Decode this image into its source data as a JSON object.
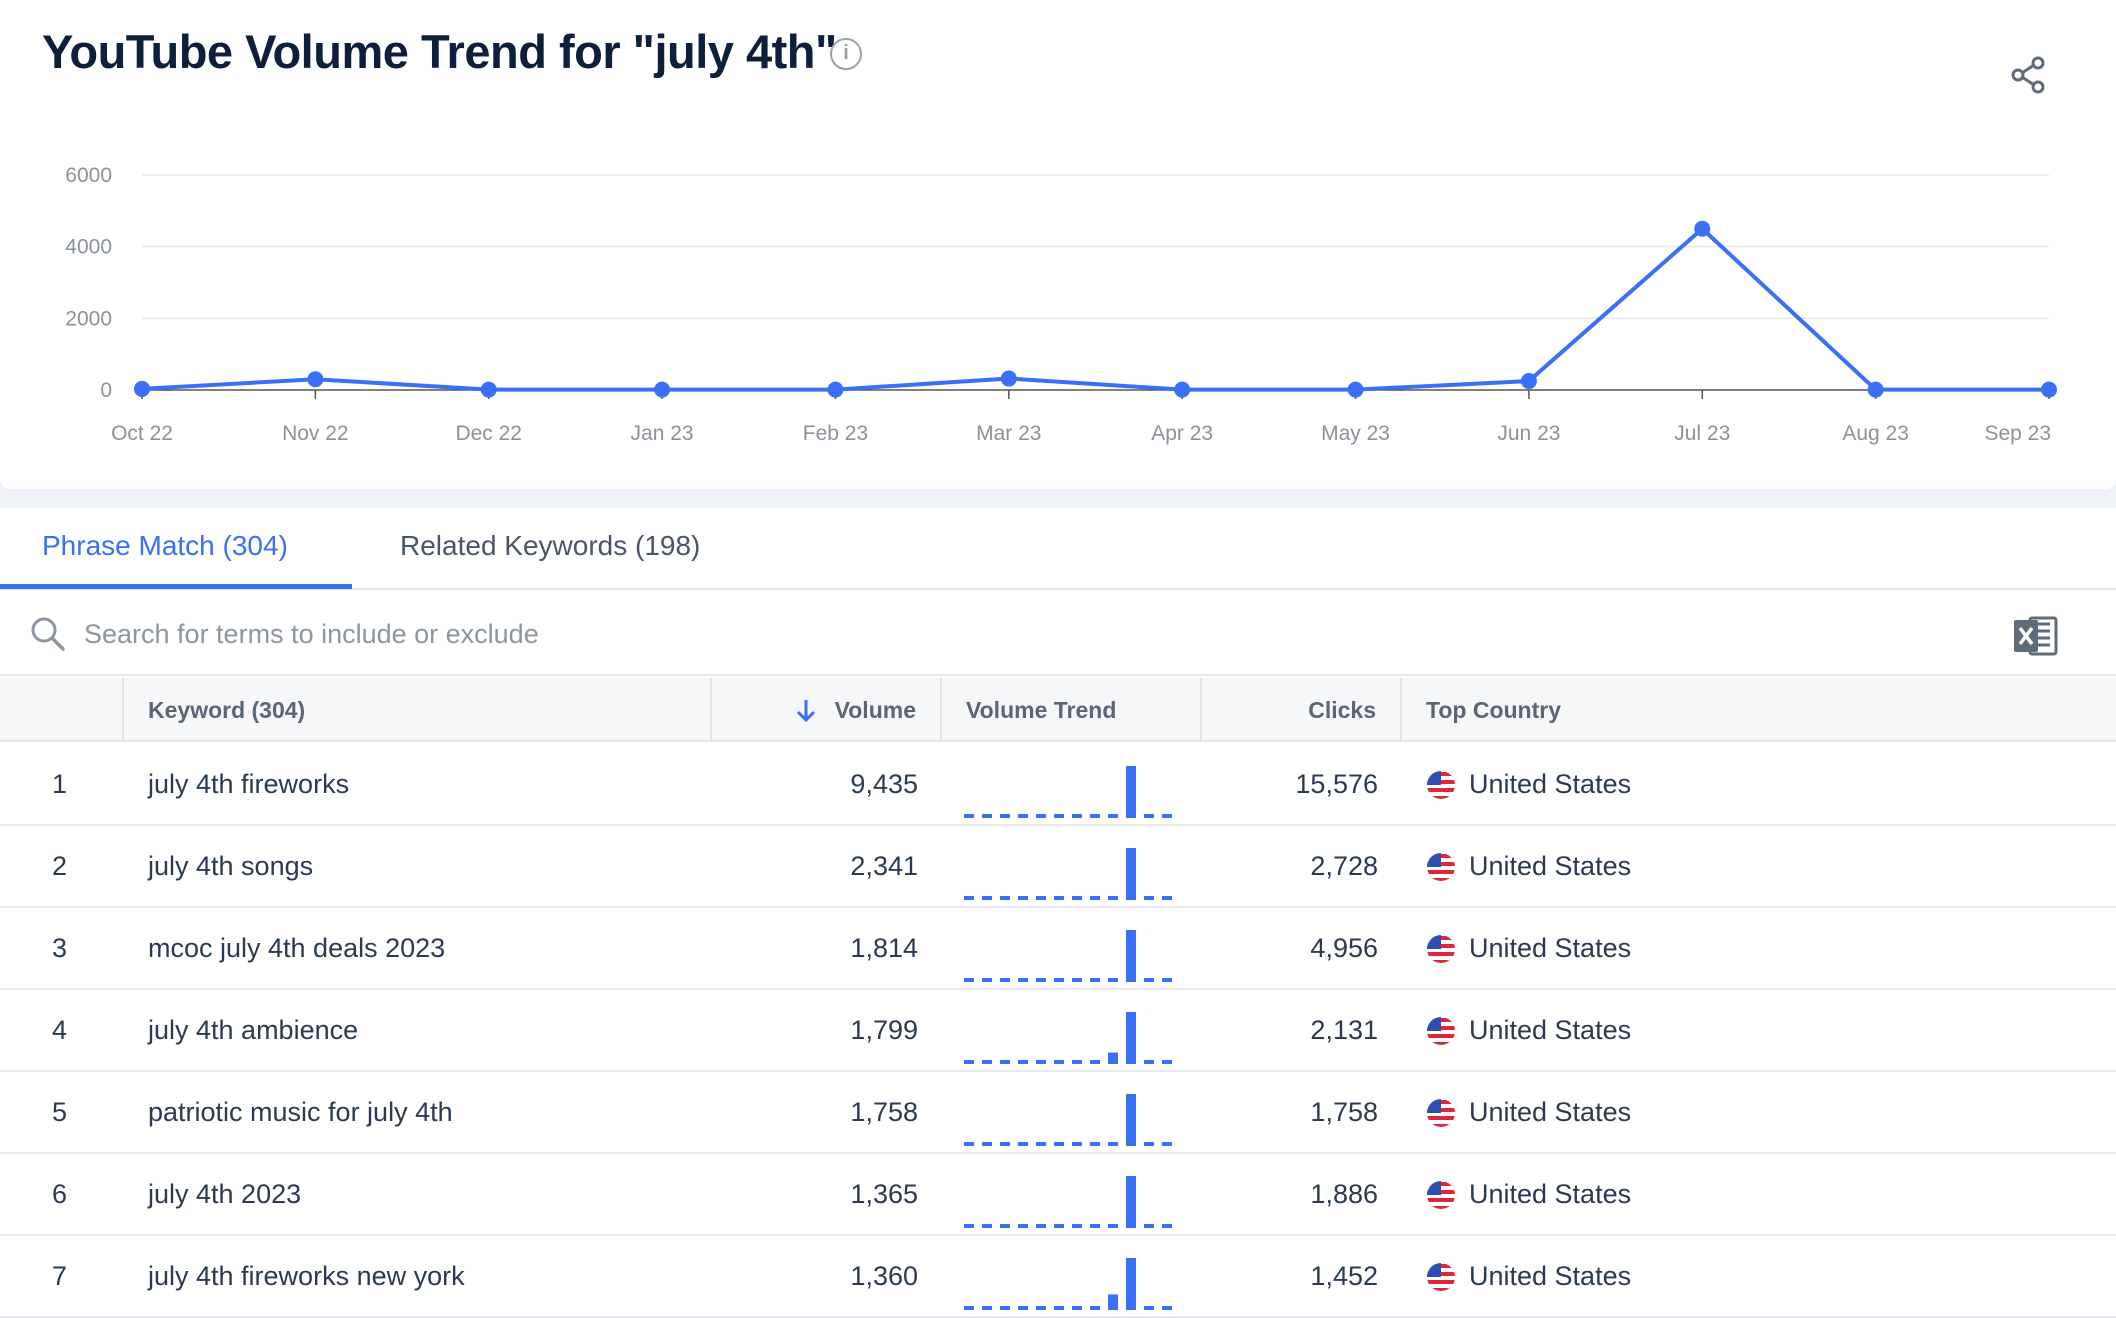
{
  "header": {
    "title": "YouTube Volume Trend for \"july 4th\"",
    "info_icon": "info-icon",
    "share_icon": "share-icon"
  },
  "chart_data": {
    "type": "line",
    "title": "YouTube Volume Trend for \"july 4th\"",
    "categories": [
      "Oct 22",
      "Nov 22",
      "Dec 22",
      "Jan 23",
      "Feb 23",
      "Mar 23",
      "Apr 23",
      "May 23",
      "Jun 23",
      "Jul 23",
      "Aug 23",
      "Sep 23"
    ],
    "series": [
      {
        "name": "Volume",
        "values": [
          30,
          300,
          10,
          10,
          10,
          320,
          10,
          10,
          250,
          4500,
          10,
          10
        ]
      }
    ],
    "yticks": [
      0,
      2000,
      4000,
      6000
    ],
    "ylim": [
      0,
      6000
    ],
    "grid": true,
    "color": "#3a6ff7"
  },
  "tabs": [
    {
      "label": "Phrase Match (304)",
      "active": true
    },
    {
      "label": "Related Keywords (198)",
      "active": false
    }
  ],
  "search": {
    "placeholder": "Search for terms to include or exclude"
  },
  "table": {
    "headers": {
      "keyword": "Keyword (304)",
      "volume": "Volume",
      "trend": "Volume Trend",
      "clicks": "Clicks",
      "country": "Top Country"
    },
    "rows": [
      {
        "n": "1",
        "keyword": "july 4th fireworks",
        "volume": "9,435",
        "clicks": "15,576",
        "country": "United States",
        "trend": [
          0,
          0,
          0,
          0,
          0,
          0,
          0,
          0,
          0,
          1,
          0,
          0
        ]
      },
      {
        "n": "2",
        "keyword": "july 4th songs",
        "volume": "2,341",
        "clicks": "2,728",
        "country": "United States",
        "trend": [
          0,
          0,
          0,
          0,
          0,
          0,
          0,
          0,
          0,
          1,
          0,
          0
        ]
      },
      {
        "n": "3",
        "keyword": "mcoc july 4th deals 2023",
        "volume": "1,814",
        "clicks": "4,956",
        "country": "United States",
        "trend": [
          0,
          0,
          0,
          0,
          0,
          0,
          0,
          0,
          0,
          1,
          0,
          0
        ]
      },
      {
        "n": "4",
        "keyword": "july 4th ambience",
        "volume": "1,799",
        "clicks": "2,131",
        "country": "United States",
        "trend": [
          0,
          0,
          0,
          0,
          0,
          0,
          0,
          0,
          0.22,
          1,
          0,
          0
        ]
      },
      {
        "n": "5",
        "keyword": "patriotic music for july 4th",
        "volume": "1,758",
        "clicks": "1,758",
        "country": "United States",
        "trend": [
          0,
          0,
          0,
          0,
          0,
          0,
          0,
          0,
          0,
          1,
          0,
          0
        ]
      },
      {
        "n": "6",
        "keyword": "july 4th 2023",
        "volume": "1,365",
        "clicks": "1,886",
        "country": "United States",
        "trend": [
          0,
          0,
          0,
          0,
          0,
          0,
          0,
          0,
          0,
          1,
          0,
          0
        ]
      },
      {
        "n": "7",
        "keyword": "july 4th fireworks new york",
        "volume": "1,360",
        "clicks": "1,452",
        "country": "United States",
        "trend": [
          0,
          0,
          0,
          0,
          0,
          0,
          0,
          0,
          0.3,
          1,
          0,
          0
        ]
      }
    ]
  }
}
